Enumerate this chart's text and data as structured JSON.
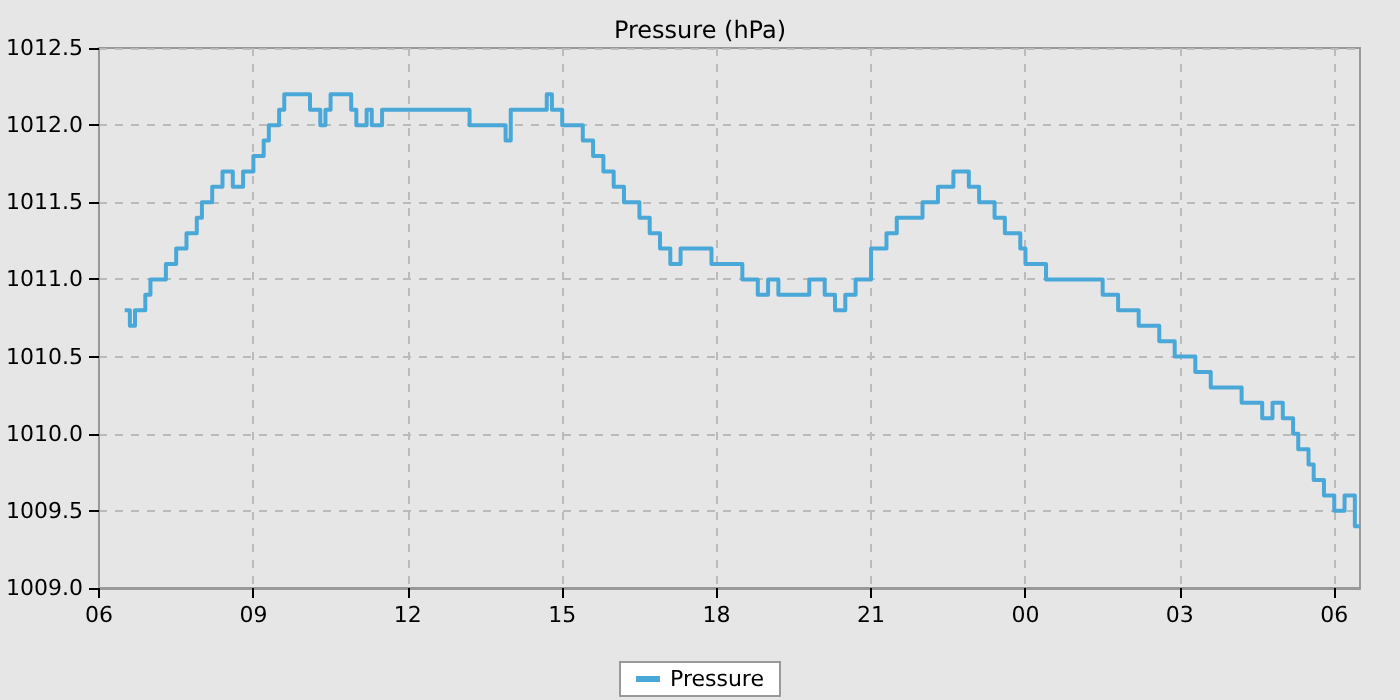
{
  "chart_data": {
    "type": "step",
    "title": "Pressure (hPa)",
    "xlim": [
      6,
      30.5
    ],
    "ylim": [
      1009.0,
      1012.5
    ],
    "xticks": [
      {
        "value": 6,
        "label": "06"
      },
      {
        "value": 9,
        "label": "09"
      },
      {
        "value": 12,
        "label": "12"
      },
      {
        "value": 15,
        "label": "15"
      },
      {
        "value": 18,
        "label": "18"
      },
      {
        "value": 21,
        "label": "21"
      },
      {
        "value": 24,
        "label": "00"
      },
      {
        "value": 27,
        "label": "03"
      },
      {
        "value": 30,
        "label": "06"
      }
    ],
    "yticks": [
      {
        "value": 1009.0,
        "label": "1009.0"
      },
      {
        "value": 1009.5,
        "label": "1009.5"
      },
      {
        "value": 1010.0,
        "label": "1010.0"
      },
      {
        "value": 1010.5,
        "label": "1010.5"
      },
      {
        "value": 1011.0,
        "label": "1011.0"
      },
      {
        "value": 1011.5,
        "label": "1011.5"
      },
      {
        "value": 1012.0,
        "label": "1012.0"
      },
      {
        "value": 1012.5,
        "label": "1012.5"
      }
    ],
    "grid": true,
    "legend": "bottom",
    "marker": "none",
    "line_style": "solid",
    "series": [
      {
        "name": "Pressure",
        "color": "#4aa8d8",
        "x": [
          6.5,
          6.6,
          6.7,
          6.9,
          7.0,
          7.3,
          7.5,
          7.7,
          7.9,
          8.0,
          8.2,
          8.4,
          8.6,
          8.8,
          9.0,
          9.2,
          9.3,
          9.5,
          9.6,
          10.0,
          10.1,
          10.3,
          10.4,
          10.5,
          10.8,
          10.9,
          11.0,
          11.2,
          11.3,
          11.5,
          12.0,
          13.0,
          13.2,
          13.8,
          13.9,
          14.0,
          14.6,
          14.7,
          14.8,
          15.0,
          15.3,
          15.4,
          15.6,
          15.8,
          16.0,
          16.2,
          16.5,
          16.7,
          16.9,
          17.1,
          17.3,
          17.6,
          17.9,
          18.4,
          18.5,
          18.8,
          19.0,
          19.2,
          19.8,
          20.1,
          20.3,
          20.5,
          20.7,
          21.0,
          21.3,
          21.5,
          21.9,
          22.0,
          22.3,
          22.6,
          22.9,
          23.1,
          23.4,
          23.6,
          23.9,
          24.0,
          24.4,
          25.0,
          25.3,
          25.5,
          25.8,
          26.2,
          26.5,
          26.6,
          26.9,
          27.3,
          27.6,
          28.0,
          28.2,
          28.6,
          28.8,
          29.0,
          29.2,
          29.3,
          29.5,
          29.6,
          29.8,
          30.0,
          30.2,
          30.4,
          30.5
        ],
        "values": [
          1010.8,
          1010.7,
          1010.8,
          1010.9,
          1011.0,
          1011.1,
          1011.2,
          1011.3,
          1011.4,
          1011.5,
          1011.6,
          1011.7,
          1011.6,
          1011.7,
          1011.8,
          1011.9,
          1012.0,
          1012.1,
          1012.2,
          1012.2,
          1012.1,
          1012.0,
          1012.1,
          1012.2,
          1012.2,
          1012.1,
          1012.0,
          1012.1,
          1012.0,
          1012.1,
          1012.1,
          1012.1,
          1012.0,
          1012.0,
          1011.9,
          1012.1,
          1012.1,
          1012.2,
          1012.1,
          1012.0,
          1012.0,
          1011.9,
          1011.8,
          1011.7,
          1011.6,
          1011.5,
          1011.4,
          1011.3,
          1011.2,
          1011.1,
          1011.2,
          1011.2,
          1011.1,
          1011.1,
          1011.0,
          1010.9,
          1011.0,
          1010.9,
          1011.0,
          1010.9,
          1010.8,
          1010.9,
          1011.0,
          1011.2,
          1011.3,
          1011.4,
          1011.4,
          1011.5,
          1011.6,
          1011.7,
          1011.6,
          1011.5,
          1011.4,
          1011.3,
          1011.2,
          1011.1,
          1011.0,
          1011.0,
          1011.0,
          1010.9,
          1010.8,
          1010.7,
          1010.7,
          1010.6,
          1010.5,
          1010.4,
          1010.3,
          1010.3,
          1010.2,
          1010.1,
          1010.2,
          1010.1,
          1010.0,
          1009.9,
          1009.8,
          1009.7,
          1009.6,
          1009.5,
          1009.6,
          1009.4,
          1009.4
        ]
      }
    ]
  }
}
